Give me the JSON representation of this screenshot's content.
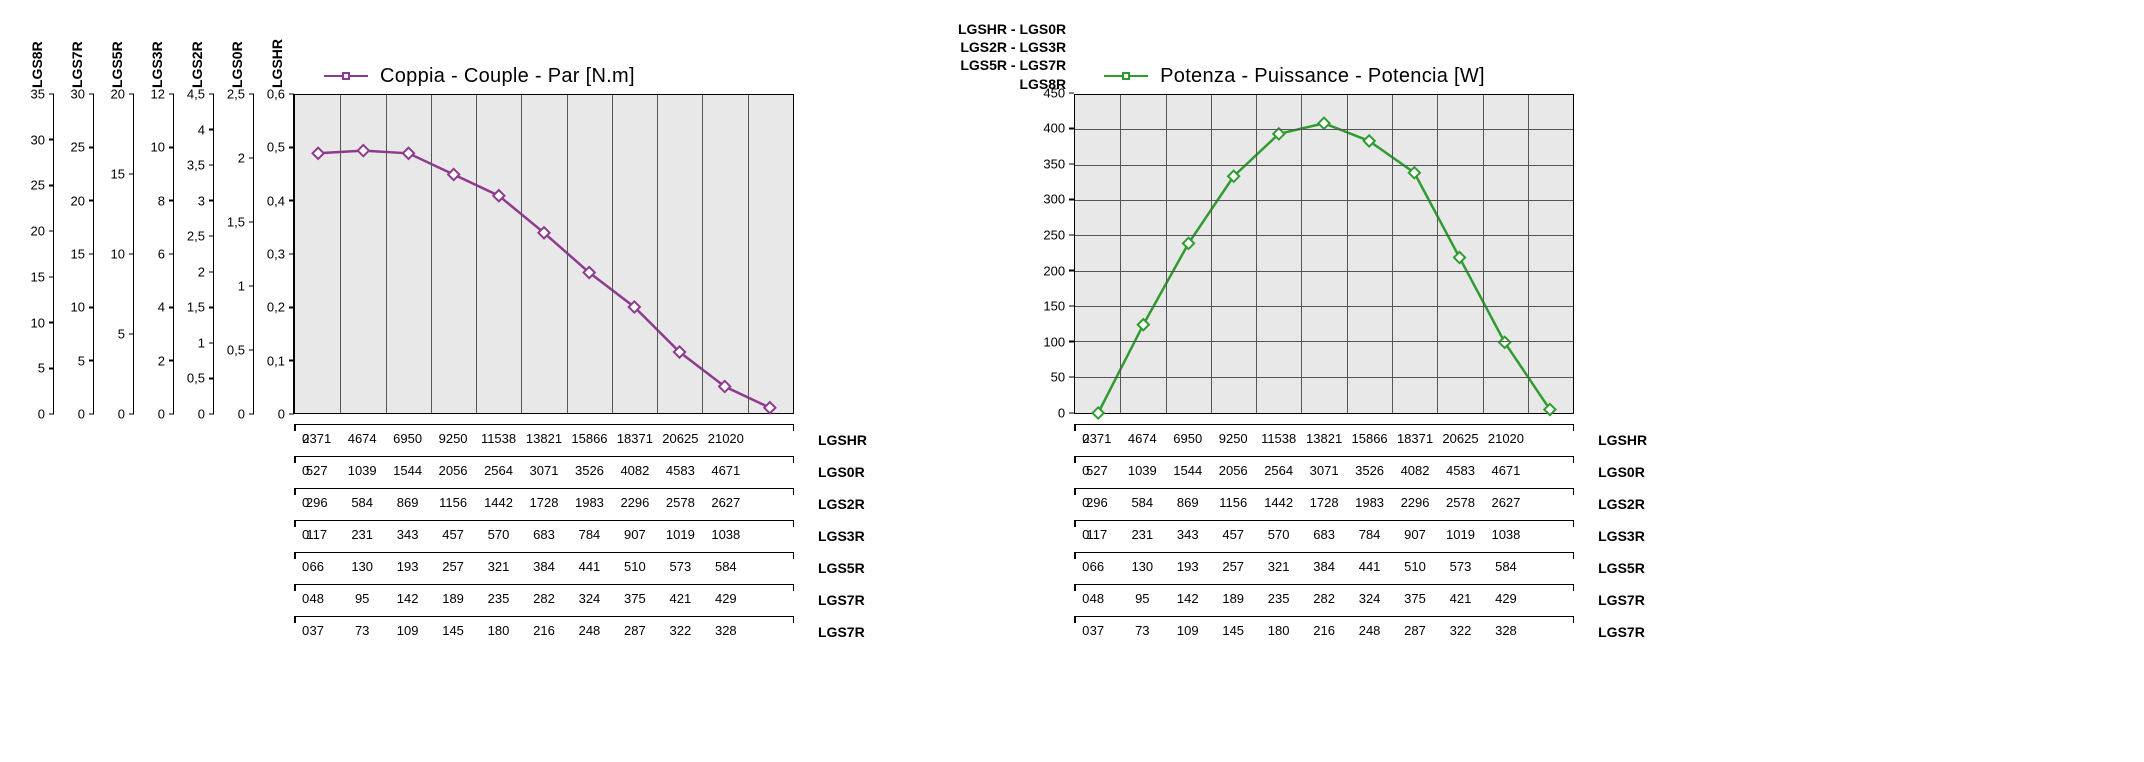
{
  "chart1": {
    "type": "line",
    "title": "Coppia - Couple - Par [N.m]",
    "series_color": "#8e3a8e",
    "marker_style": "square",
    "marker_size": 8,
    "line_width": 2.5,
    "background_color": "#e8e8e8",
    "grid_color": "#555555",
    "series_x_idx": [
      1,
      2,
      3,
      4,
      5,
      6,
      7,
      8,
      9,
      10,
      11
    ],
    "series_y": [
      0.49,
      0.495,
      0.49,
      0.45,
      0.41,
      0.34,
      0.265,
      0.2,
      0.115,
      0.05,
      0.01
    ],
    "ylim": [
      0,
      0.6
    ],
    "xgrid_count": 11,
    "yaxes": [
      {
        "label": "LGS8R",
        "ticks": [
          0,
          5,
          10,
          15,
          20,
          25,
          30,
          35
        ],
        "max": 35
      },
      {
        "label": "LGS7R",
        "ticks": [
          0,
          5,
          10,
          15,
          20,
          25,
          30
        ],
        "max": 30
      },
      {
        "label": "LGS5R",
        "ticks": [
          0,
          5,
          10,
          15,
          20
        ],
        "max": 20
      },
      {
        "label": "LGS3R",
        "ticks": [
          0,
          2,
          4,
          6,
          8,
          10,
          12
        ],
        "max": 12
      },
      {
        "label": "LGS2R",
        "ticks": [
          0,
          "0,5",
          1,
          "1,5",
          2,
          "2,5",
          3,
          "3,5",
          4,
          "4,5"
        ],
        "max": 4.5
      },
      {
        "label": "LGS0R",
        "ticks": [
          0,
          "0,5",
          1,
          "1,5",
          2,
          "2,5"
        ],
        "max": 2.5
      },
      {
        "label": "LGSHR",
        "ticks": [
          0,
          "0,1",
          "0,2",
          "0,3",
          "0,4",
          "0,5",
          "0,6"
        ],
        "max": 0.6
      }
    ],
    "xaxis_rows": [
      {
        "label": "LGSHR",
        "values": [
          0,
          2371,
          4674,
          6950,
          9250,
          11538,
          13821,
          15866,
          18371,
          20625,
          21020
        ]
      },
      {
        "label": "LGS0R",
        "values": [
          0,
          527,
          1039,
          1544,
          2056,
          2564,
          3071,
          3526,
          4082,
          4583,
          4671
        ]
      },
      {
        "label": "LGS2R",
        "values": [
          0,
          296,
          584,
          869,
          1156,
          1442,
          1728,
          1983,
          2296,
          2578,
          2627
        ]
      },
      {
        "label": "LGS3R",
        "values": [
          0,
          117,
          231,
          343,
          457,
          570,
          683,
          784,
          907,
          1019,
          1038
        ]
      },
      {
        "label": "LGS5R",
        "values": [
          0,
          66,
          130,
          193,
          257,
          321,
          384,
          441,
          510,
          573,
          584
        ]
      },
      {
        "label": "LGS7R",
        "values": [
          0,
          48,
          95,
          142,
          189,
          235,
          282,
          324,
          375,
          421,
          429
        ]
      },
      {
        "label": "LGS7R",
        "values": [
          0,
          37,
          73,
          109,
          145,
          180,
          216,
          248,
          287,
          322,
          328
        ]
      }
    ]
  },
  "chart2": {
    "type": "line",
    "title": "Potenza - Puissance - Potencia [W]",
    "series_color": "#2e9c2e",
    "marker_style": "square",
    "marker_size": 8,
    "line_width": 2.5,
    "background_color": "#e8e8e8",
    "grid_color": "#555555",
    "header_lines": [
      "LGSHR - LGS0R",
      "LGS2R - LGS3R",
      "LGS5R - LGS7R",
      "LGS8R"
    ],
    "series_x_idx": [
      1,
      2,
      3,
      4,
      5,
      6,
      7,
      8,
      9,
      10,
      11
    ],
    "series_y": [
      0,
      125,
      240,
      335,
      395,
      410,
      385,
      340,
      220,
      100,
      5
    ],
    "ylim": [
      0,
      450
    ],
    "yticks": [
      0,
      50,
      100,
      150,
      200,
      250,
      300,
      350,
      400,
      450
    ],
    "xgrid_count": 11,
    "xaxis_rows": [
      {
        "label": "LGSHR",
        "values": [
          0,
          2371,
          4674,
          6950,
          9250,
          11538,
          13821,
          15866,
          18371,
          20625,
          21020
        ]
      },
      {
        "label": "LGS0R",
        "values": [
          0,
          527,
          1039,
          1544,
          2056,
          2564,
          3071,
          3526,
          4082,
          4583,
          4671
        ]
      },
      {
        "label": "LGS2R",
        "values": [
          0,
          296,
          584,
          869,
          1156,
          1442,
          1728,
          1983,
          2296,
          2578,
          2627
        ]
      },
      {
        "label": "LGS3R",
        "values": [
          0,
          117,
          231,
          343,
          457,
          570,
          683,
          784,
          907,
          1019,
          1038
        ]
      },
      {
        "label": "LGS5R",
        "values": [
          0,
          66,
          130,
          193,
          257,
          321,
          384,
          441,
          510,
          573,
          584
        ]
      },
      {
        "label": "LGS7R",
        "values": [
          0,
          48,
          95,
          142,
          189,
          235,
          282,
          324,
          375,
          421,
          429
        ]
      },
      {
        "label": "LGS7R",
        "values": [
          0,
          37,
          73,
          109,
          145,
          180,
          216,
          248,
          287,
          322,
          328
        ]
      }
    ]
  }
}
